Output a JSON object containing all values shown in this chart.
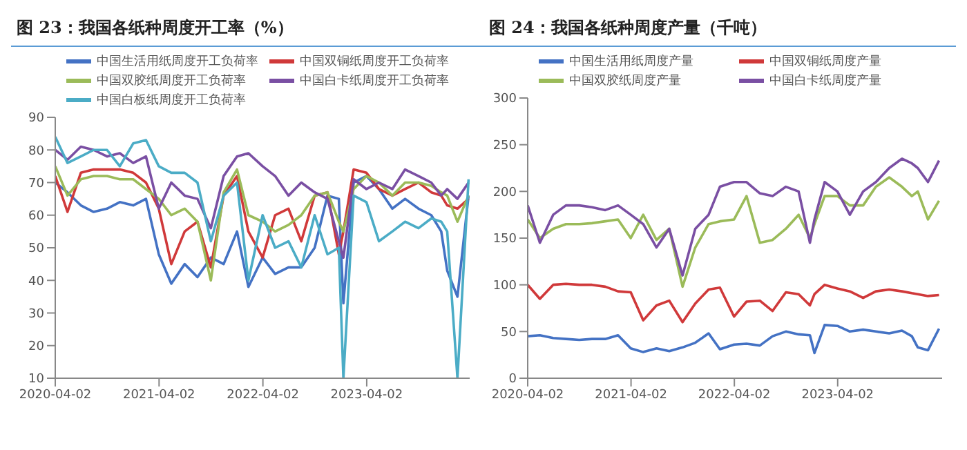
{
  "chart_data": [
    {
      "type": "line",
      "title": "图 23：我国各纸种周度开工率（%）",
      "legend": "top",
      "x": [
        "2020-04-02",
        "2020-05-15",
        "2020-07-01",
        "2020-08-15",
        "2020-10-01",
        "2020-11-15",
        "2021-01-01",
        "2021-02-15",
        "2021-04-01",
        "2021-05-15",
        "2021-07-01",
        "2021-08-15",
        "2021-10-01",
        "2021-11-15",
        "2022-01-01",
        "2022-02-10",
        "2022-04-01",
        "2022-05-15",
        "2022-07-01",
        "2022-08-15",
        "2022-10-01",
        "2022-11-15",
        "2022-12-25",
        "2023-01-10",
        "2023-02-15",
        "2023-04-01",
        "2023-05-15",
        "2023-07-01",
        "2023-08-15",
        "2023-10-01",
        "2023-11-15",
        "2023-12-20",
        "2024-01-10",
        "2024-02-15",
        "2024-03-25"
      ],
      "xlim": [
        "2020-04-02",
        "2024-03-29"
      ],
      "xticks": [
        "2020-04-02",
        "2021-04-02",
        "2022-04-02",
        "2023-04-02"
      ],
      "ylim": [
        10,
        90
      ],
      "yticks": [
        10,
        20,
        30,
        40,
        50,
        60,
        70,
        80,
        90
      ],
      "series": [
        {
          "name": "中国生活用纸周度开工负荷率",
          "color": "#4472c4",
          "values": [
            70,
            67,
            63,
            61,
            62,
            64,
            63,
            65,
            48,
            39,
            45,
            41,
            47,
            45,
            55,
            38,
            47,
            42,
            44,
            44,
            50,
            66,
            65,
            33,
            70,
            72,
            68,
            62,
            65,
            62,
            60,
            55,
            43,
            35,
            66
          ]
        },
        {
          "name": "中国双铜纸周度开工负荷率",
          "color": "#d0393a",
          "values": [
            72,
            61,
            73,
            74,
            74,
            74,
            73,
            70,
            62,
            45,
            55,
            58,
            44,
            66,
            72,
            55,
            47,
            60,
            62,
            52,
            66,
            67,
            48,
            55,
            74,
            73,
            68,
            66,
            68,
            70,
            67,
            66,
            63,
            62,
            65
          ]
        },
        {
          "name": "中国双胶纸周度开工负荷率",
          "color": "#9bbb59",
          "values": [
            75,
            66,
            71,
            72,
            72,
            71,
            71,
            68,
            65,
            60,
            62,
            58,
            40,
            67,
            74,
            60,
            58,
            55,
            57,
            60,
            66,
            67,
            58,
            55,
            68,
            72,
            70,
            66,
            70,
            70,
            69,
            67,
            66,
            58,
            66
          ]
        },
        {
          "name": "中国白卡纸周度开工负荷率",
          "color": "#7a4fa3",
          "values": [
            80,
            77,
            81,
            80,
            78,
            79,
            76,
            78,
            62,
            70,
            66,
            65,
            56,
            72,
            78,
            79,
            75,
            72,
            66,
            70,
            67,
            65,
            52,
            47,
            71,
            68,
            70,
            68,
            74,
            72,
            70,
            66,
            68,
            65,
            70
          ]
        },
        {
          "name": "中国白板纸周度开工负荷率",
          "color": "#4bacc6",
          "values": [
            84,
            76,
            78,
            80,
            80,
            75,
            82,
            83,
            75,
            73,
            73,
            70,
            52,
            66,
            70,
            40,
            60,
            50,
            52,
            44,
            60,
            48,
            50,
            10,
            66,
            64,
            52,
            55,
            58,
            56,
            59,
            58,
            55,
            10,
            71
          ]
        }
      ]
    },
    {
      "type": "line",
      "title": "图 24：我国各纸种周度产量（千吨）",
      "legend": "top",
      "x": [
        "2020-04-02",
        "2020-05-15",
        "2020-07-01",
        "2020-08-15",
        "2020-10-01",
        "2020-11-15",
        "2021-01-01",
        "2021-02-15",
        "2021-04-01",
        "2021-05-15",
        "2021-07-01",
        "2021-08-15",
        "2021-10-01",
        "2021-11-15",
        "2022-01-01",
        "2022-02-10",
        "2022-04-01",
        "2022-05-15",
        "2022-07-01",
        "2022-08-15",
        "2022-10-01",
        "2022-11-15",
        "2022-12-25",
        "2023-01-10",
        "2023-02-15",
        "2023-04-01",
        "2023-05-15",
        "2023-07-01",
        "2023-08-15",
        "2023-10-01",
        "2023-11-15",
        "2023-12-20",
        "2024-01-10",
        "2024-02-15",
        "2024-03-25"
      ],
      "xlim": [
        "2020-04-02",
        "2024-04-05"
      ],
      "xticks": [
        "2020-04-02",
        "2021-04-02",
        "2022-04-02",
        "2023-04-02"
      ],
      "ylim": [
        0,
        300
      ],
      "yticks": [
        0,
        50,
        100,
        150,
        200,
        250,
        300
      ],
      "series": [
        {
          "name": "中国生活用纸周度产量",
          "color": "#4472c4",
          "values": [
            45,
            46,
            43,
            42,
            41,
            42,
            42,
            46,
            32,
            28,
            32,
            29,
            33,
            38,
            48,
            31,
            36,
            37,
            35,
            45,
            50,
            47,
            46,
            27,
            57,
            56,
            50,
            52,
            50,
            48,
            51,
            45,
            33,
            30,
            53
          ]
        },
        {
          "name": "中国双铜纸周度产量",
          "color": "#d0393a",
          "values": [
            100,
            85,
            100,
            101,
            100,
            100,
            98,
            93,
            92,
            62,
            78,
            83,
            60,
            80,
            95,
            97,
            66,
            82,
            83,
            72,
            92,
            90,
            78,
            90,
            100,
            96,
            93,
            86,
            93,
            95,
            93,
            91,
            90,
            88,
            89
          ]
        },
        {
          "name": "中国双胶纸周度产量",
          "color": "#9bbb59",
          "values": [
            170,
            150,
            160,
            165,
            165,
            166,
            168,
            170,
            150,
            175,
            148,
            160,
            98,
            140,
            165,
            168,
            170,
            195,
            145,
            148,
            160,
            175,
            150,
            165,
            195,
            195,
            185,
            185,
            205,
            215,
            205,
            195,
            200,
            170,
            190
          ]
        },
        {
          "name": "中国白卡纸周度产量",
          "color": "#7a4fa3",
          "values": [
            185,
            145,
            175,
            185,
            185,
            183,
            180,
            185,
            175,
            165,
            140,
            160,
            110,
            160,
            175,
            205,
            210,
            210,
            198,
            195,
            205,
            200,
            145,
            170,
            210,
            200,
            175,
            200,
            210,
            225,
            235,
            230,
            225,
            210,
            233
          ]
        }
      ]
    }
  ]
}
